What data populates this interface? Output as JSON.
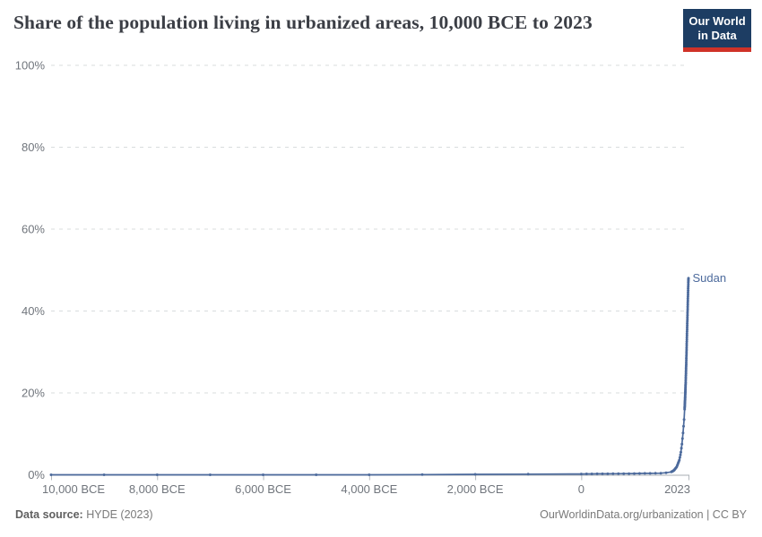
{
  "title": "Share of the population living in urbanized areas, 10,000 BCE to 2023",
  "logo": {
    "line1": "Our World",
    "line2": "in Data"
  },
  "entity_label": "Sudan",
  "footer": {
    "source_label": "Data source:",
    "source_value": "HYDE (2023)",
    "right_text": "OurWorldinData.org/urbanization | CC BY"
  },
  "colors": {
    "line": "#4C6A9C",
    "grid": "#d9dcde",
    "axis": "#a7adb3",
    "tick": "#b3b8bd",
    "tick_label": "#70757c",
    "title": "#3b3e45",
    "logo_bg": "#1d3d63",
    "logo_accent": "#cf3228"
  },
  "chart_data": {
    "type": "line",
    "title": "Share of the population living in urbanized areas, 10,000 BCE to 2023",
    "xlabel": "",
    "ylabel": "",
    "xlim": [
      -10000,
      2023
    ],
    "ylim": [
      0,
      100
    ],
    "grid": "dashed-horizontal",
    "legend_position": "end-of-line-label",
    "x_ticks": [
      {
        "value": -10000,
        "label": "10,000 BCE"
      },
      {
        "value": -8000,
        "label": "8,000 BCE"
      },
      {
        "value": -6000,
        "label": "6,000 BCE"
      },
      {
        "value": -4000,
        "label": "4,000 BCE"
      },
      {
        "value": -2000,
        "label": "2,000 BCE"
      },
      {
        "value": 0,
        "label": "0"
      },
      {
        "value": 2023,
        "label": "2023"
      }
    ],
    "y_ticks": [
      {
        "value": 0,
        "label": "0%"
      },
      {
        "value": 20,
        "label": "20%"
      },
      {
        "value": 40,
        "label": "40%"
      },
      {
        "value": 60,
        "label": "60%"
      },
      {
        "value": 80,
        "label": "80%"
      },
      {
        "value": 100,
        "label": "100%"
      }
    ],
    "series": [
      {
        "name": "Sudan",
        "unit": "%",
        "anchors": [
          [
            -10000,
            0
          ],
          [
            -9000,
            0
          ],
          [
            -8000,
            0
          ],
          [
            -7000,
            0
          ],
          [
            -6000,
            0
          ],
          [
            -5000,
            0
          ],
          [
            -4000,
            0
          ],
          [
            -3000,
            0.05
          ],
          [
            -2000,
            0.1
          ],
          [
            -1000,
            0.15
          ],
          [
            0,
            0.2
          ],
          [
            500,
            0.25
          ],
          [
            1000,
            0.3
          ],
          [
            1500,
            0.4
          ],
          [
            1600,
            0.5
          ],
          [
            1700,
            0.7
          ],
          [
            1750,
            1.1
          ],
          [
            1800,
            1.9
          ],
          [
            1850,
            3.6
          ],
          [
            1880,
            5.5
          ],
          [
            1900,
            7.5
          ],
          [
            1920,
            10.2
          ],
          [
            1940,
            13.5
          ],
          [
            1950,
            16
          ],
          [
            1960,
            19
          ],
          [
            1970,
            22.5
          ],
          [
            1980,
            27
          ],
          [
            1990,
            32
          ],
          [
            2000,
            37
          ],
          [
            2005,
            39.5
          ],
          [
            2010,
            42
          ],
          [
            2015,
            44.5
          ],
          [
            2020,
            47
          ],
          [
            2023,
            48
          ]
        ],
        "sampling": [
          {
            "from": -10000,
            "to": 0,
            "step": 1000
          },
          {
            "from": 100,
            "to": 1700,
            "step": 100
          },
          {
            "from": 1710,
            "to": 1950,
            "step": 10
          },
          {
            "from": 1951,
            "to": 2023,
            "step": 1
          }
        ]
      }
    ]
  }
}
